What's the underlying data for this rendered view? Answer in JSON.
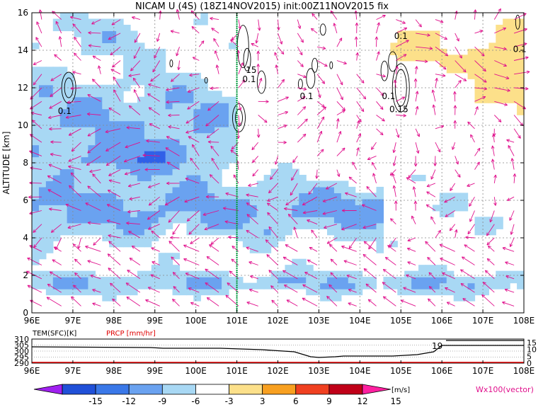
{
  "title": "NICAM U (4S) (18Z14NOV2015) init:00Z11NOV2015 fix",
  "colors": {
    "neg_deep": "#3060e8",
    "neg_mid": "#6aa2f0",
    "neg_light": "#a8d8f4",
    "pos_light": "#fce08a",
    "pos_mid": "#f8a020",
    "vector": "#e0108c",
    "marker": "#00a040",
    "prcp": "#e00000"
  },
  "chart_data": [
    {
      "type": "heatmap",
      "xlabel": "",
      "ylabel": "ALTITUDE [km]",
      "x_ticks": [
        "96E",
        "97E",
        "98E",
        "99E",
        "100E",
        "101E",
        "102E",
        "103E",
        "104E",
        "105E",
        "106E",
        "107E",
        "108E"
      ],
      "x_range": [
        96,
        108
      ],
      "y_ticks": [
        "0",
        "2",
        "4",
        "6",
        "8",
        "10",
        "12",
        "14",
        "16"
      ],
      "y_range": [
        0,
        16
      ],
      "grid": true,
      "marker_line_x": 101,
      "contour_labels": [
        {
          "text": "0.1",
          "x": 96.8,
          "y": 10.6
        },
        {
          "text": "0.1",
          "x": 101.3,
          "y": 12.3
        },
        {
          "text": "15",
          "x": 101.35,
          "y": 12.8
        },
        {
          "text": "0.1",
          "x": 102.7,
          "y": 11.4
        },
        {
          "text": "0.1",
          "x": 104.7,
          "y": 11.4
        },
        {
          "text": "0.15",
          "x": 104.95,
          "y": 10.7
        },
        {
          "text": "0.1",
          "x": 105.0,
          "y": 14.6
        },
        {
          "text": "0.1",
          "x": 107.9,
          "y": 13.9
        }
      ],
      "vector_label": "Wx100(vector)"
    },
    {
      "type": "line",
      "series": [
        {
          "name": "TEM(SFC)[K]",
          "values_k": [
            300,
            300,
            300,
            300,
            300,
            300,
            300,
            300,
            300,
            300,
            300,
            300,
            300
          ]
        },
        {
          "name": "PRCP [mm/hr]",
          "values": [
            0,
            0,
            0,
            0,
            0,
            0,
            0,
            0,
            0,
            0,
            0,
            0,
            0
          ]
        }
      ],
      "x_ticks": [
        "96E",
        "97E",
        "98E",
        "99E",
        "100E",
        "101E",
        "102E",
        "103E",
        "104E",
        "105E",
        "106E",
        "107E",
        "108E"
      ],
      "y_left_ticks": [
        "310",
        "305",
        "300",
        "295",
        "290"
      ],
      "y_right_ticks": [
        "15",
        "10",
        "5",
        "0"
      ],
      "annotation": "19"
    },
    {
      "type": "colorbar",
      "labels": [
        "-15",
        "-12",
        "-9",
        "-6",
        "-3",
        "3",
        "6",
        "9",
        "12",
        "15"
      ],
      "colors": [
        "#a020f0",
        "#2050d8",
        "#3a78e8",
        "#6aa2f0",
        "#a8d8f4",
        "#ffffff",
        "#fce08a",
        "#f8a020",
        "#f04020",
        "#c00018",
        "#ff20a0"
      ],
      "unit": "[m/s]"
    }
  ]
}
